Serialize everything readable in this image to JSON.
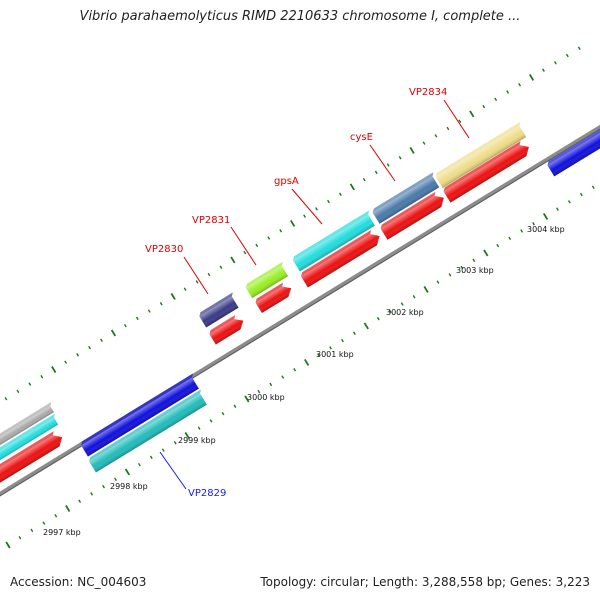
{
  "title": "Vibrio parahaemolyticus RIMD 2210633 chromosome I, complete ...",
  "footer": {
    "accession": "Accession: NC_004603",
    "summary": "Topology: circular; Length: 3,288,558 bp; Genes: 3,223"
  },
  "scale_labels": [
    "2997 kbp",
    "2998 kbp",
    "2999 kbp",
    "3000 kbp",
    "3001 kbp",
    "3002 kbp",
    "3003 kbp",
    "3004 kbp"
  ],
  "gene_labels": [
    {
      "text": "VP2830",
      "color": "#dd0000"
    },
    {
      "text": "VP2831",
      "color": "#dd0000"
    },
    {
      "text": "gpsA",
      "color": "#dd0000"
    },
    {
      "text": "cysE",
      "color": "#dd0000"
    },
    {
      "text": "VP2834",
      "color": "#dd0000"
    },
    {
      "text": "VP2829",
      "color": "#1a1aee"
    }
  ],
  "colors": {
    "backbone": "#8c8c8c",
    "tick": "#1a7a1a",
    "red": "#ee1111",
    "blue": "#1111dd",
    "cyan": "#22dddd",
    "teal": "#22bbbb",
    "navy": "#3a3a88",
    "lime": "#99ee22",
    "steel": "#4a7aaa",
    "khaki": "#eedd88",
    "gray": "#aaaaaa"
  }
}
